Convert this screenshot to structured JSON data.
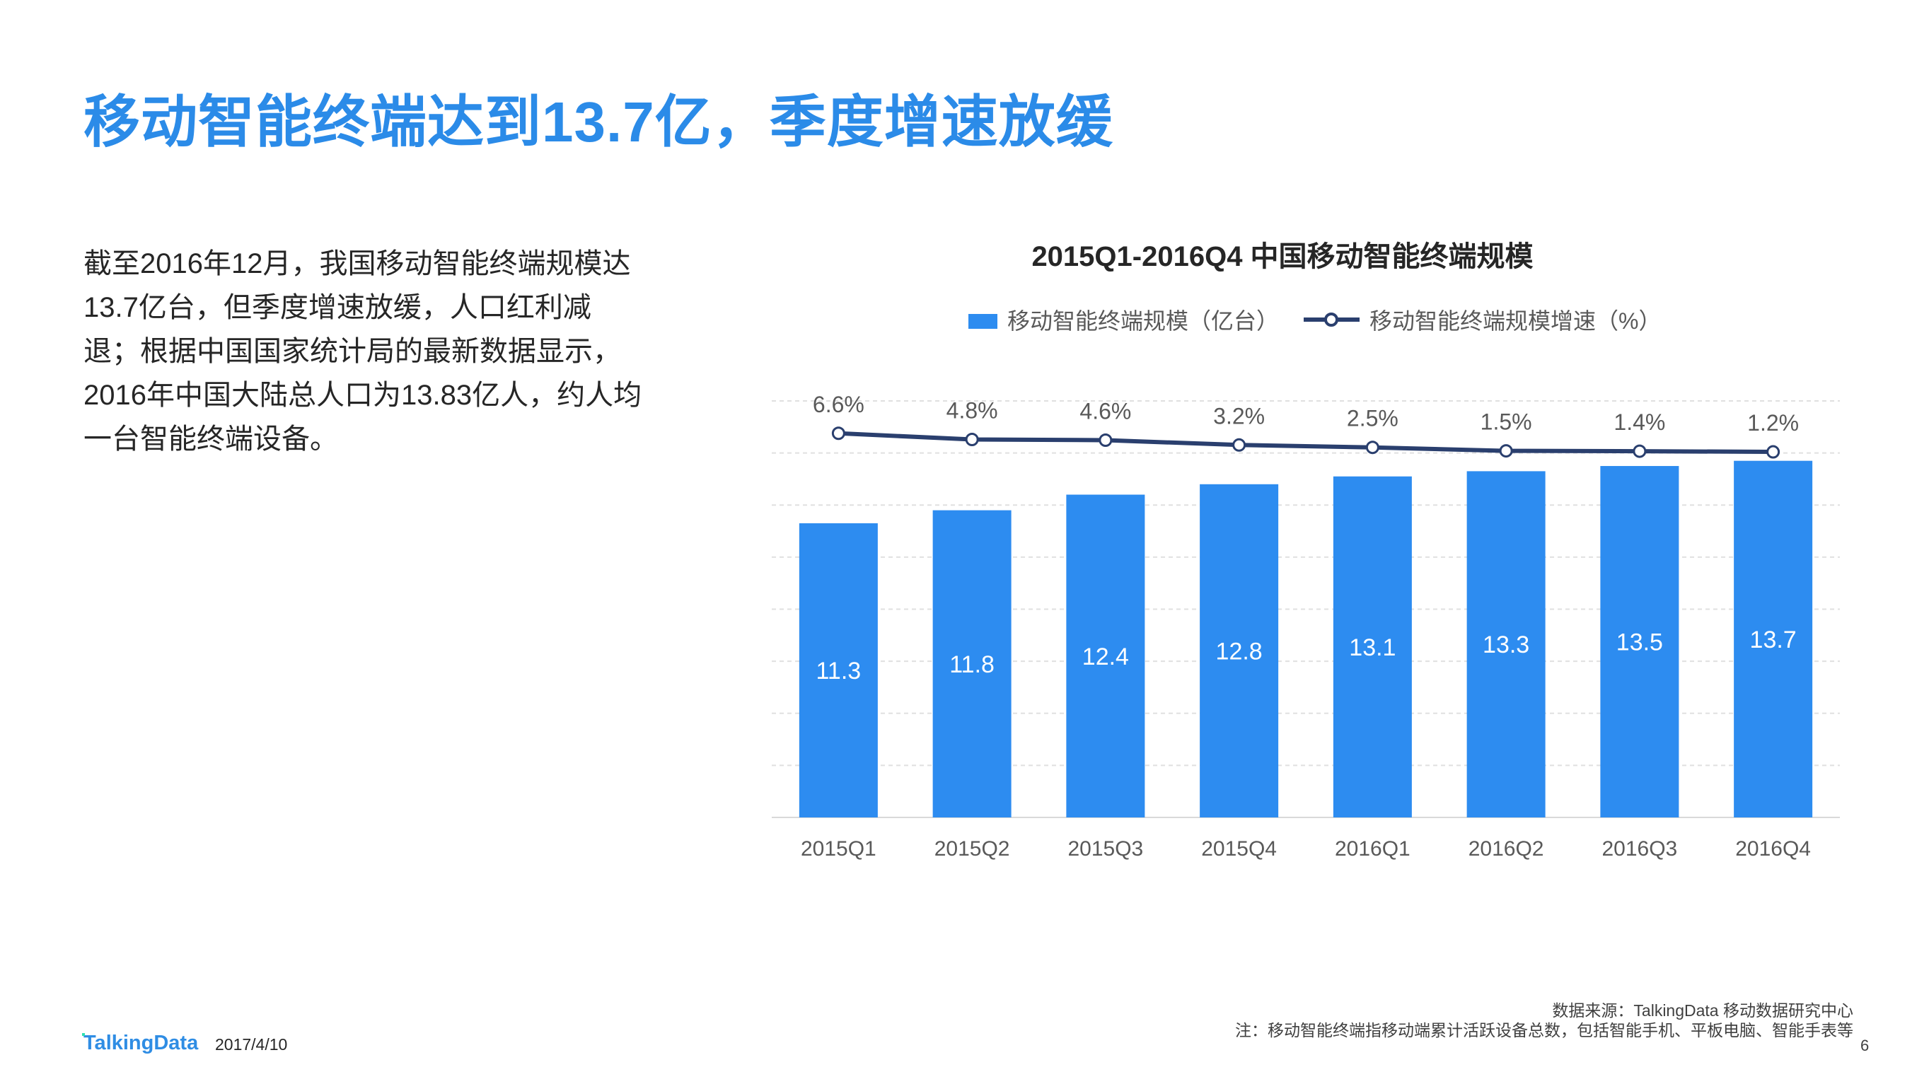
{
  "header": {
    "title": "移动智能终端达到13.7亿，季度增速放缓"
  },
  "body": {
    "lines": [
      "截至2016年12月，我国移动智能终端规模达",
      "13.7亿台，但季度增速放缓，人口红利减",
      "退；根据中国国家统计局的最新数据显示，",
      "2016年中国大陆总人口为13.83亿人，约人均",
      "一台智能终端设备。"
    ]
  },
  "chart_data": {
    "type": "bar+line",
    "title": "2015Q1-2016Q4 中国移动智能终端规模",
    "categories": [
      "2015Q1",
      "2015Q2",
      "2015Q3",
      "2015Q4",
      "2016Q1",
      "2016Q2",
      "2016Q3",
      "2016Q4"
    ],
    "series": [
      {
        "name": "移动智能终端规模（亿台）",
        "type": "bar",
        "color": "#2d8cf0",
        "values": [
          11.3,
          11.8,
          12.4,
          12.8,
          13.1,
          13.3,
          13.5,
          13.7
        ],
        "labels": [
          "11.3",
          "11.8",
          "12.4",
          "12.8",
          "13.1",
          "13.3",
          "13.5",
          "13.7"
        ]
      },
      {
        "name": "移动智能终端规模增速（%）",
        "type": "line",
        "color": "#2a3f6e",
        "values": [
          6.6,
          4.8,
          4.6,
          3.2,
          2.5,
          1.5,
          1.4,
          1.2
        ],
        "labels": [
          "6.6%",
          "4.8%",
          "4.6%",
          "3.2%",
          "2.5%",
          "1.5%",
          "1.4%",
          "1.2%"
        ]
      }
    ],
    "ylim": [
      0,
      16
    ],
    "y2lim": [
      -105,
      16
    ],
    "grid": true,
    "axes_visible": false,
    "legend": "top"
  },
  "footer": {
    "source": "数据来源：TalkingData 移动数据研究中心",
    "note": "注：移动智能终端指移动端累计活跃设备总数，包括智能手机、平板电脑、智能手表等",
    "page": "6",
    "logo": "TalkingData",
    "date": "2017/4/10"
  }
}
